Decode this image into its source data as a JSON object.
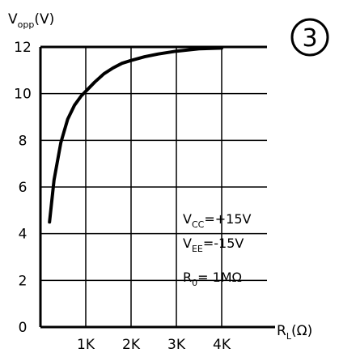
{
  "chart_data": {
    "type": "line",
    "badge": "3",
    "ylabel": {
      "main": "V",
      "sub": "opp",
      "unit": "(V)"
    },
    "xlabel": {
      "main": "R",
      "sub": "L",
      "unit": "(Ω)"
    },
    "xlim": [
      0,
      5000
    ],
    "ylim": [
      0,
      12
    ],
    "grid": true,
    "x_ticks": [
      {
        "value": 0,
        "label": "0"
      },
      {
        "value": 1000,
        "label": "1K"
      },
      {
        "value": 2000,
        "label": "2K"
      },
      {
        "value": 3000,
        "label": "3K"
      },
      {
        "value": 4000,
        "label": "4K"
      }
    ],
    "y_ticks": [
      {
        "value": 0,
        "label": "0"
      },
      {
        "value": 2,
        "label": "2"
      },
      {
        "value": 4,
        "label": "4"
      },
      {
        "value": 6,
        "label": "6"
      },
      {
        "value": 8,
        "label": "8"
      },
      {
        "value": 10,
        "label": "10"
      },
      {
        "value": 12,
        "label": "12"
      }
    ],
    "series": [
      {
        "x": [
          200,
          300,
          450,
          600,
          750,
          900,
          1000,
          1200,
          1400,
          1600,
          1800,
          2000,
          2300,
          2600,
          3000,
          3500,
          4000
        ],
        "y": [
          4.5,
          6.3,
          7.9,
          8.9,
          9.5,
          9.9,
          10.1,
          10.5,
          10.85,
          11.1,
          11.3,
          11.42,
          11.58,
          11.7,
          11.82,
          11.92,
          11.95
        ]
      }
    ],
    "conditions": [
      {
        "main": "V",
        "sub": "CC",
        "value": "=+15V"
      },
      {
        "main": "V",
        "sub": "EE",
        "value": "=-15V"
      },
      {
        "main": "R",
        "sub": "0",
        "value": "= 1MΩ"
      }
    ]
  }
}
